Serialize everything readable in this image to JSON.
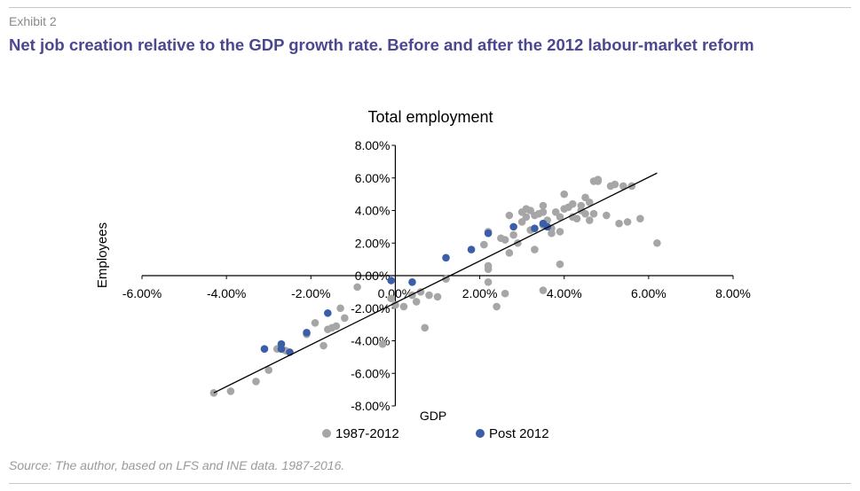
{
  "exhibit_label": "Exhibit 2",
  "headline": "Net job creation relative to the GDP growth rate. Before and after the 2012 labour-market reform",
  "source": "Source: The author, based on LFS and INE data. 1987-2016.",
  "colors": {
    "series_1987_2012": "#a6a6a6",
    "series_post_2012": "#3a5ea7",
    "headline": "#4b4790",
    "trend": "#000000"
  },
  "chart_data": {
    "type": "scatter",
    "title": "Total employment",
    "xlabel": "GDP",
    "ylabel": "Employees",
    "xlim": [
      -0.06,
      0.08
    ],
    "ylim": [
      -0.08,
      0.08
    ],
    "x_ticks": [
      "-6.00%",
      "-4.00%",
      "-2.00%",
      "0.00%",
      "2.00%",
      "4.00%",
      "6.00%",
      "8.00%"
    ],
    "y_ticks": [
      "8.00%",
      "6.00%",
      "4.00%",
      "2.00%",
      "0.00%",
      "-2.00%",
      "-4.00%",
      "-6.00%",
      "-8.00%"
    ],
    "grid": false,
    "legend_position": "bottom",
    "trendline": [
      [
        -0.043,
        -0.072
      ],
      [
        0.062,
        0.063
      ]
    ],
    "series": [
      {
        "name": "1987-2012",
        "color": "#a6a6a6",
        "points": [
          [
            -0.043,
            -0.072
          ],
          [
            -0.039,
            -0.071
          ],
          [
            -0.033,
            -0.065
          ],
          [
            -0.03,
            -0.058
          ],
          [
            -0.028,
            -0.045
          ],
          [
            -0.026,
            -0.046
          ],
          [
            -0.021,
            -0.036
          ],
          [
            -0.019,
            -0.029
          ],
          [
            -0.017,
            -0.043
          ],
          [
            -0.016,
            -0.033
          ],
          [
            -0.015,
            -0.032
          ],
          [
            -0.014,
            -0.031
          ],
          [
            -0.013,
            -0.02
          ],
          [
            -0.012,
            -0.026
          ],
          [
            -0.009,
            -0.007
          ],
          [
            -0.003,
            -0.042
          ],
          [
            -0.001,
            -0.014
          ],
          [
            0.0,
            -0.018
          ],
          [
            0.002,
            -0.019
          ],
          [
            0.004,
            -0.012
          ],
          [
            0.005,
            -0.016
          ],
          [
            0.006,
            -0.01
          ],
          [
            0.007,
            -0.032
          ],
          [
            0.008,
            -0.012
          ],
          [
            0.01,
            -0.013
          ],
          [
            0.012,
            -0.002
          ],
          [
            0.021,
            0.019
          ],
          [
            0.022,
            0.027
          ],
          [
            0.022,
            0.006
          ],
          [
            0.022,
            0.004
          ],
          [
            0.022,
            -0.004
          ],
          [
            0.024,
            -0.019
          ],
          [
            0.025,
            0.023
          ],
          [
            0.026,
            0.022
          ],
          [
            0.026,
            -0.011
          ],
          [
            0.027,
            0.037
          ],
          [
            0.027,
            0.014
          ],
          [
            0.028,
            0.025
          ],
          [
            0.029,
            0.02
          ],
          [
            0.03,
            0.033
          ],
          [
            0.03,
            0.039
          ],
          [
            0.031,
            0.041
          ],
          [
            0.031,
            0.036
          ],
          [
            0.032,
            0.028
          ],
          [
            0.032,
            0.04
          ],
          [
            0.033,
            0.037
          ],
          [
            0.033,
            0.016
          ],
          [
            0.034,
            0.038
          ],
          [
            0.035,
            0.043
          ],
          [
            0.035,
            0.039
          ],
          [
            0.035,
            0.031
          ],
          [
            0.036,
            0.034
          ],
          [
            0.037,
            0.029
          ],
          [
            0.037,
            0.026
          ],
          [
            0.038,
            0.039
          ],
          [
            0.039,
            0.036
          ],
          [
            0.039,
            0.027
          ],
          [
            0.039,
            0.007
          ],
          [
            0.04,
            0.05
          ],
          [
            0.04,
            0.041
          ],
          [
            0.041,
            0.042
          ],
          [
            0.042,
            0.044
          ],
          [
            0.042,
            0.036
          ],
          [
            0.043,
            0.035
          ],
          [
            0.044,
            0.04
          ],
          [
            0.045,
            0.038
          ],
          [
            0.045,
            0.048
          ],
          [
            0.046,
            0.045
          ],
          [
            0.046,
            0.034
          ],
          [
            0.047,
            0.058
          ],
          [
            0.047,
            0.038
          ],
          [
            0.048,
            0.058
          ],
          [
            0.048,
            0.059
          ],
          [
            0.05,
            0.037
          ],
          [
            0.051,
            0.055
          ],
          [
            0.052,
            0.056
          ],
          [
            0.053,
            0.032
          ],
          [
            0.054,
            0.055
          ],
          [
            0.055,
            0.033
          ],
          [
            0.056,
            0.055
          ],
          [
            0.058,
            0.035
          ],
          [
            0.062,
            0.02
          ],
          [
            0.035,
            -0.009
          ],
          [
            0.044,
            0.043
          ]
        ]
      },
      {
        "name": "Post 2012",
        "color": "#3a5ea7",
        "points": [
          [
            -0.031,
            -0.045
          ],
          [
            -0.027,
            -0.042
          ],
          [
            -0.027,
            -0.045
          ],
          [
            -0.025,
            -0.047
          ],
          [
            -0.021,
            -0.035
          ],
          [
            -0.016,
            -0.023
          ],
          [
            -0.001,
            -0.003
          ],
          [
            0.004,
            -0.004
          ],
          [
            0.012,
            0.011
          ],
          [
            0.018,
            0.016
          ],
          [
            0.022,
            0.026
          ],
          [
            0.028,
            0.03
          ],
          [
            0.033,
            0.029
          ],
          [
            0.035,
            0.032
          ],
          [
            0.036,
            0.03
          ]
        ]
      }
    ]
  }
}
